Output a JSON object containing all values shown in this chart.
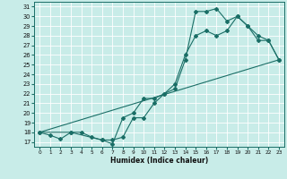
{
  "xlabel": "Humidex (Indice chaleur)",
  "bg_color": "#c8ece8",
  "line_color": "#1a6e66",
  "grid_color": "#ffffff",
  "xlim": [
    -0.5,
    23.5
  ],
  "ylim": [
    16.5,
    31.5
  ],
  "xticks": [
    0,
    1,
    2,
    3,
    4,
    5,
    6,
    7,
    8,
    9,
    10,
    11,
    12,
    13,
    14,
    15,
    16,
    17,
    18,
    19,
    20,
    21,
    22,
    23
  ],
  "yticks": [
    17,
    18,
    19,
    20,
    21,
    22,
    23,
    24,
    25,
    26,
    27,
    28,
    29,
    30,
    31
  ],
  "series": [
    {
      "x": [
        0,
        1,
        2,
        3,
        4,
        5,
        6,
        7,
        8,
        9,
        10,
        11,
        12,
        13,
        14,
        15,
        16,
        17,
        18,
        19,
        20,
        21,
        22,
        23
      ],
      "y": [
        18,
        17.7,
        17.3,
        18,
        18,
        17.5,
        17.2,
        16.8,
        19.5,
        20,
        21.5,
        21.5,
        22,
        23,
        26,
        28,
        28.5,
        28,
        28.5,
        30,
        29,
        28,
        27.5,
        25.5
      ],
      "has_markers": true
    },
    {
      "x": [
        0,
        3,
        6,
        7,
        8,
        9,
        10,
        11,
        12,
        13,
        14,
        15,
        16,
        17,
        18,
        19,
        20,
        21,
        22,
        23
      ],
      "y": [
        18,
        18,
        17.2,
        17.2,
        17.5,
        19.5,
        19.5,
        21,
        22,
        22.5,
        25.5,
        30.5,
        30.5,
        30.8,
        29.5,
        30,
        29,
        27.5,
        27.5,
        25.5
      ],
      "has_markers": true
    },
    {
      "x": [
        0,
        23
      ],
      "y": [
        18,
        25.5
      ],
      "has_markers": false
    }
  ]
}
